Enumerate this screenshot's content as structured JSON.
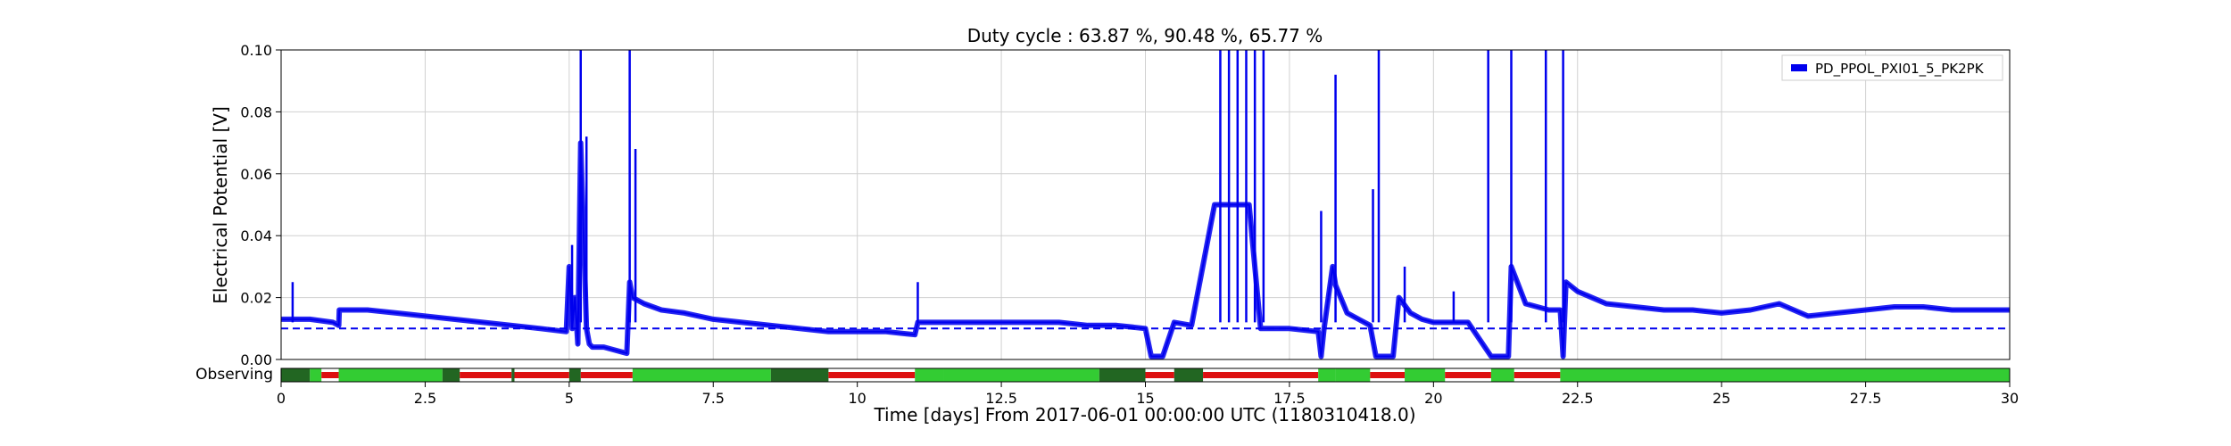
{
  "chart_data": {
    "type": "line",
    "title": "Duty cycle : 63.87 %, 90.48 %, 65.77 %",
    "xlabel": "Time [days] From 2017-06-01 00:00:00 UTC (1180310418.0)",
    "ylabel": "Electrical Potential [V]",
    "xlim": [
      0,
      30
    ],
    "ylim": [
      0,
      0.1
    ],
    "xticks": [
      0,
      2.5,
      5,
      7.5,
      10,
      12.5,
      15,
      17.5,
      20,
      22.5,
      25,
      27.5,
      30
    ],
    "xtick_labels": [
      "0",
      "2.5",
      "5",
      "7.5",
      "10",
      "12.5",
      "15",
      "17.5",
      "20",
      "22.5",
      "25",
      "27.5",
      "30"
    ],
    "yticks": [
      0,
      0.02,
      0.04,
      0.06,
      0.08,
      0.1
    ],
    "ytick_labels": [
      "0.00",
      "0.02",
      "0.04",
      "0.06",
      "0.08",
      "0.10"
    ],
    "grid": true,
    "legend_position": "top-right",
    "series": [
      {
        "name": "PD_PPOL_PXI01_5_PK2PK",
        "color": "#0000ee",
        "x": [
          0,
          0.2,
          0.5,
          0.9,
          1.0,
          1.01,
          1.5,
          2.0,
          2.5,
          3.0,
          3.5,
          4.0,
          4.5,
          4.95,
          5.0,
          5.05,
          5.1,
          5.15,
          5.2,
          5.25,
          5.3,
          5.35,
          5.4,
          5.6,
          5.8,
          6.0,
          6.05,
          6.1,
          6.3,
          6.6,
          7.0,
          7.5,
          8.0,
          8.5,
          9.0,
          9.5,
          10.0,
          10.5,
          11.0,
          11.05,
          11.5,
          12.0,
          12.5,
          13.0,
          13.5,
          14.0,
          14.5,
          15.0,
          15.1,
          15.3,
          15.5,
          15.8,
          16.2,
          16.5,
          16.8,
          17.0,
          17.5,
          18.0,
          18.05,
          18.1,
          18.25,
          18.3,
          18.5,
          18.7,
          18.9,
          19.0,
          19.05,
          19.3,
          19.4,
          19.6,
          19.8,
          20.0,
          20.3,
          20.6,
          21.0,
          21.05,
          21.3,
          21.35,
          21.6,
          22.0,
          22.2,
          22.25,
          22.3,
          22.5,
          23.0,
          23.5,
          24.0,
          24.5,
          25.0,
          25.5,
          26.0,
          26.5,
          27.0,
          27.5,
          28.0,
          28.5,
          29.0,
          29.5,
          30.0
        ],
        "y": [
          0.013,
          0.013,
          0.013,
          0.012,
          0.011,
          0.016,
          0.016,
          0.015,
          0.014,
          0.013,
          0.012,
          0.011,
          0.01,
          0.009,
          0.03,
          0.01,
          0.02,
          0.005,
          0.07,
          0.04,
          0.01,
          0.005,
          0.004,
          0.004,
          0.003,
          0.002,
          0.025,
          0.02,
          0.018,
          0.016,
          0.015,
          0.013,
          0.012,
          0.011,
          0.01,
          0.009,
          0.009,
          0.009,
          0.008,
          0.012,
          0.012,
          0.012,
          0.012,
          0.012,
          0.012,
          0.011,
          0.011,
          0.01,
          0.001,
          0.001,
          0.012,
          0.011,
          0.05,
          0.05,
          0.05,
          0.01,
          0.01,
          0.009,
          0.001,
          0.01,
          0.03,
          0.024,
          0.015,
          0.013,
          0.011,
          0.001,
          0.001,
          0.001,
          0.02,
          0.015,
          0.013,
          0.012,
          0.012,
          0.012,
          0.001,
          0.001,
          0.001,
          0.03,
          0.018,
          0.016,
          0.016,
          0.001,
          0.025,
          0.022,
          0.018,
          0.017,
          0.016,
          0.016,
          0.015,
          0.016,
          0.018,
          0.014,
          0.015,
          0.016,
          0.017,
          0.017,
          0.016,
          0.016,
          0.016
        ]
      },
      {
        "name": "",
        "color": "#0000ee",
        "style": "dashed",
        "x": [
          0,
          30
        ],
        "y": [
          0.01,
          0.01
        ]
      }
    ],
    "spikes": [
      {
        "x": 0.2,
        "y": 0.025
      },
      {
        "x": 5.05,
        "y": 0.037
      },
      {
        "x": 5.2,
        "y": 0.1
      },
      {
        "x": 5.3,
        "y": 0.072
      },
      {
        "x": 6.05,
        "y": 0.1
      },
      {
        "x": 6.15,
        "y": 0.068
      },
      {
        "x": 11.05,
        "y": 0.025
      },
      {
        "x": 16.3,
        "y": 0.1
      },
      {
        "x": 16.45,
        "y": 0.1
      },
      {
        "x": 16.6,
        "y": 0.1
      },
      {
        "x": 16.75,
        "y": 0.1
      },
      {
        "x": 16.9,
        "y": 0.1
      },
      {
        "x": 17.05,
        "y": 0.1
      },
      {
        "x": 18.05,
        "y": 0.048
      },
      {
        "x": 18.3,
        "y": 0.092
      },
      {
        "x": 18.95,
        "y": 0.055
      },
      {
        "x": 19.05,
        "y": 0.1
      },
      {
        "x": 19.5,
        "y": 0.03
      },
      {
        "x": 20.35,
        "y": 0.022
      },
      {
        "x": 20.95,
        "y": 0.1
      },
      {
        "x": 21.35,
        "y": 0.1
      },
      {
        "x": 21.95,
        "y": 0.1
      },
      {
        "x": 22.25,
        "y": 0.1
      }
    ],
    "observing": {
      "label": "Observing",
      "colors": {
        "observing": "#33cc33",
        "observing_dark": "#226622",
        "off": "#dd1111"
      },
      "segments": [
        {
          "start": 0,
          "end": 0.5,
          "state": "observing_dark"
        },
        {
          "start": 0.5,
          "end": 0.7,
          "state": "observing"
        },
        {
          "start": 0.7,
          "end": 1.0,
          "state": "off"
        },
        {
          "start": 1.0,
          "end": 2.8,
          "state": "observing"
        },
        {
          "start": 2.8,
          "end": 3.1,
          "state": "observing_dark"
        },
        {
          "start": 3.1,
          "end": 4.0,
          "state": "off"
        },
        {
          "start": 4.0,
          "end": 4.05,
          "state": "observing_dark"
        },
        {
          "start": 4.05,
          "end": 5.0,
          "state": "off"
        },
        {
          "start": 5.0,
          "end": 5.2,
          "state": "observing_dark"
        },
        {
          "start": 5.2,
          "end": 6.1,
          "state": "off"
        },
        {
          "start": 6.1,
          "end": 8.5,
          "state": "observing"
        },
        {
          "start": 8.5,
          "end": 9.5,
          "state": "observing_dark"
        },
        {
          "start": 9.5,
          "end": 11.0,
          "state": "off"
        },
        {
          "start": 11.0,
          "end": 11.5,
          "state": "observing"
        },
        {
          "start": 11.5,
          "end": 14.2,
          "state": "observing"
        },
        {
          "start": 14.2,
          "end": 15.0,
          "state": "observing_dark"
        },
        {
          "start": 15.0,
          "end": 15.5,
          "state": "off"
        },
        {
          "start": 15.5,
          "end": 16.0,
          "state": "observing_dark"
        },
        {
          "start": 16.0,
          "end": 18.0,
          "state": "off"
        },
        {
          "start": 18.0,
          "end": 18.3,
          "state": "observing"
        },
        {
          "start": 18.3,
          "end": 18.9,
          "state": "observing"
        },
        {
          "start": 18.9,
          "end": 19.5,
          "state": "off"
        },
        {
          "start": 19.5,
          "end": 20.2,
          "state": "observing"
        },
        {
          "start": 20.2,
          "end": 21.0,
          "state": "off"
        },
        {
          "start": 21.0,
          "end": 21.4,
          "state": "observing"
        },
        {
          "start": 21.4,
          "end": 22.2,
          "state": "off"
        },
        {
          "start": 22.2,
          "end": 30.0,
          "state": "observing"
        }
      ]
    }
  }
}
